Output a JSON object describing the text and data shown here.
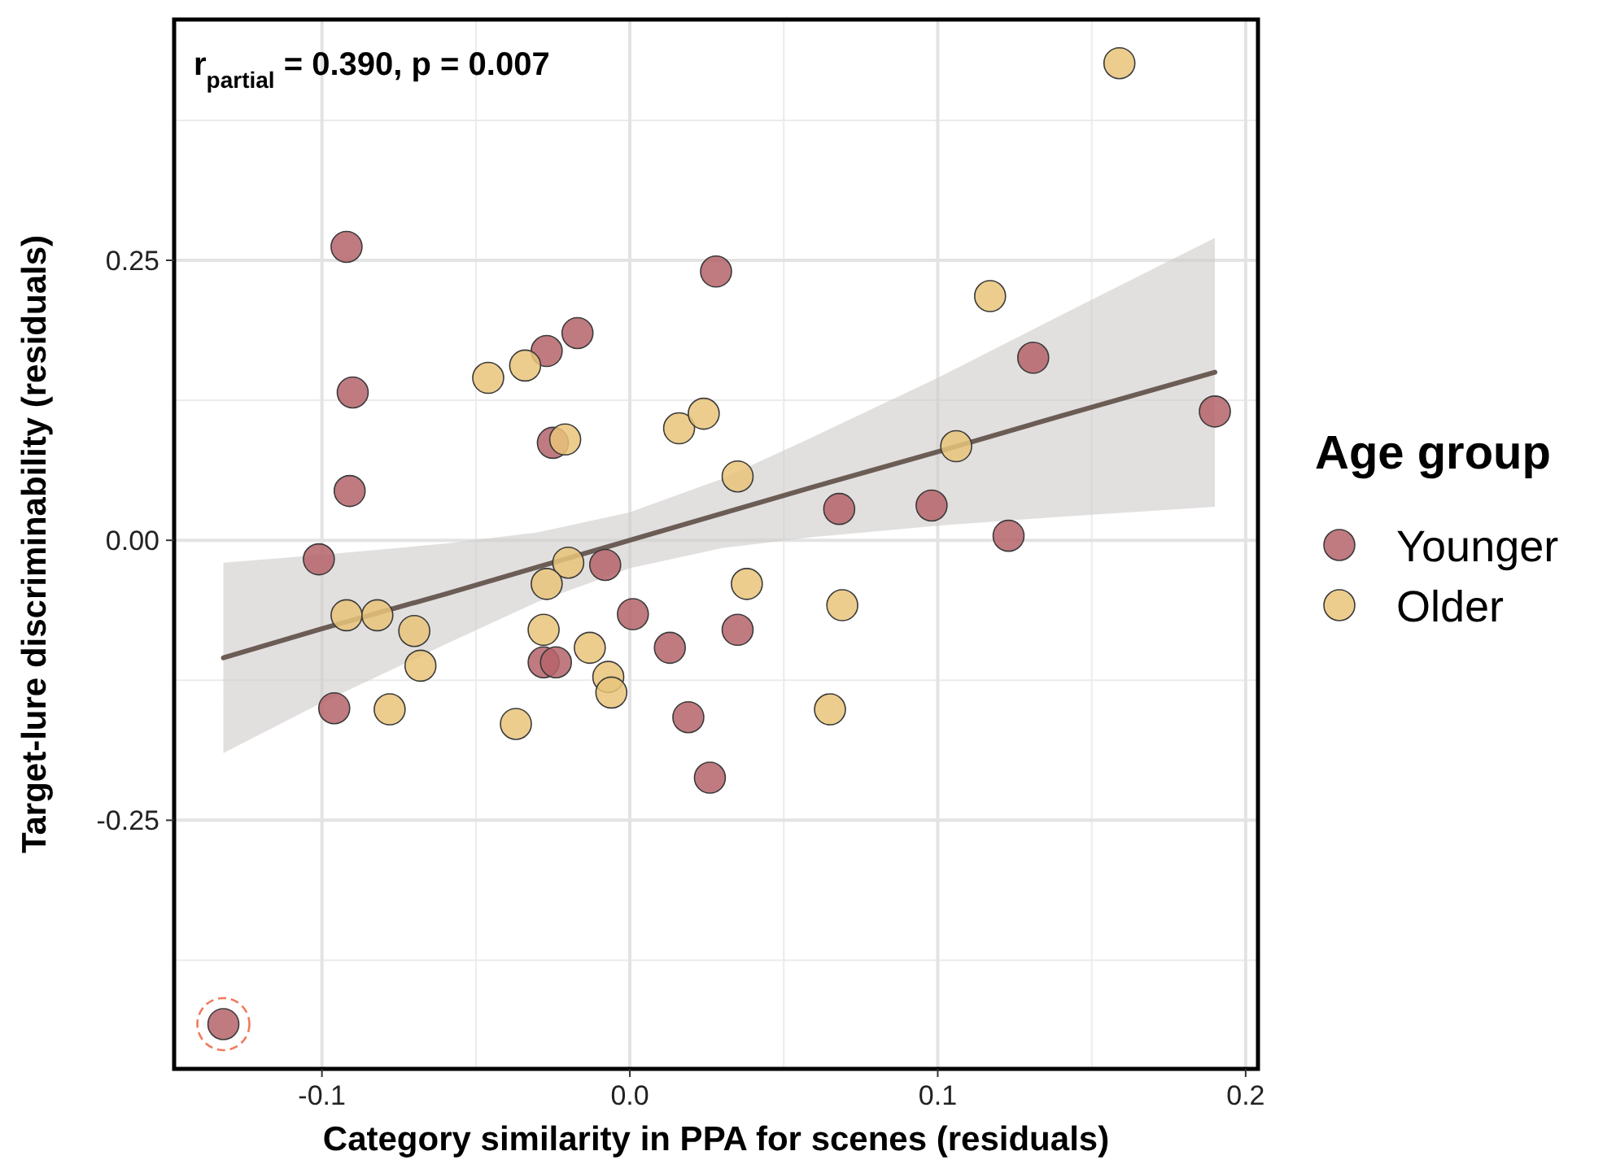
{
  "chart_data": {
    "type": "scatter",
    "xlabel": "Category similarity in PPA for scenes (residuals)",
    "ylabel": "Target-lure discriminability (residuals)",
    "legend_title": "Age group",
    "legend": "right",
    "grid": true,
    "marker": "circle",
    "xlim": [
      -0.148,
      0.204
    ],
    "xticks": [
      -0.1,
      {
        "value": 0,
        "label": "0.0"
      },
      0.1,
      0.2
    ],
    "ylim": [
      -0.472,
      0.465
    ],
    "yticks": [
      -0.25,
      {
        "value": 0,
        "label": "0.00"
      },
      0.25
    ],
    "annotations": [
      "r$_{partial}$ = 0.390, p = 0.007"
    ],
    "series": [
      {
        "name": "Younger",
        "color": "#b5646a",
        "x": [
          -0.092,
          0.028,
          -0.017,
          -0.027,
          -0.09,
          -0.025,
          -0.091,
          0.131,
          0.19,
          0.068,
          0.098,
          0.123,
          -0.101,
          -0.096,
          -0.008,
          -0.028,
          -0.024,
          0.001,
          0.013,
          0.019,
          0.026,
          -0.132,
          0.035
        ],
        "values": [
          0.262,
          0.24,
          0.185,
          0.169,
          0.132,
          0.087,
          0.044,
          0.163,
          0.115,
          0.028,
          0.031,
          0.004,
          -0.017,
          -0.15,
          -0.022,
          -0.109,
          -0.109,
          -0.066,
          -0.096,
          -0.158,
          -0.212,
          -0.432,
          -0.08
        ]
      },
      {
        "name": "Older",
        "color": "#e9c47a",
        "x": [
          -0.034,
          -0.046,
          -0.021,
          0.016,
          0.024,
          0.159,
          0.117,
          0.106,
          0.035,
          -0.092,
          -0.082,
          -0.07,
          -0.068,
          -0.078,
          -0.037,
          -0.02,
          -0.027,
          -0.028,
          -0.013,
          -0.007,
          -0.006,
          0.038,
          0.069,
          0.065
        ],
        "values": [
          0.156,
          0.145,
          0.09,
          0.1,
          0.113,
          0.426,
          0.218,
          0.084,
          0.057,
          -0.067,
          -0.067,
          -0.081,
          -0.112,
          -0.151,
          -0.164,
          -0.02,
          -0.039,
          -0.08,
          -0.096,
          -0.122,
          -0.136,
          -0.039,
          -0.058,
          -0.151
        ]
      },
      {
        "type": "line",
        "marker": "none",
        "color": "#6b5d55",
        "x": [
          -0.132,
          -0.1,
          -0.06,
          -0.03,
          0,
          0.03,
          0.06,
          0.1,
          0.14,
          0.19
        ],
        "values": [
          -0.105,
          -0.079,
          -0.048,
          -0.024,
          0,
          0.024,
          0.048,
          0.079,
          0.111,
          0.15
        ],
        "lower": [
          -0.19,
          -0.145,
          -0.093,
          -0.055,
          -0.025,
          -0.007,
          0.003,
          0.013,
          0.021,
          0.03
        ],
        "upper": [
          -0.02,
          -0.013,
          -0.003,
          0.007,
          0.025,
          0.055,
          0.093,
          0.145,
          0.201,
          0.27
        ]
      }
    ]
  }
}
